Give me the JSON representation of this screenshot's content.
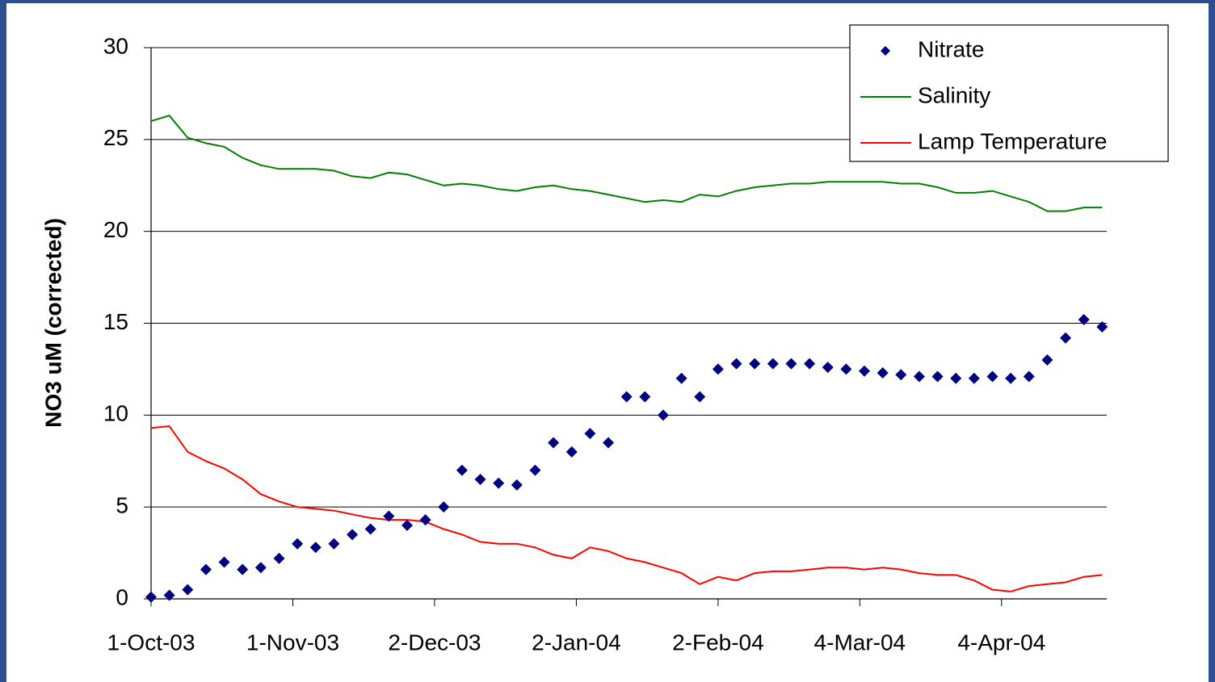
{
  "chart_data": {
    "type": "line",
    "y_label": "NO3 uM (corrected)",
    "x": [
      "2003-10-01",
      "2003-10-05",
      "2003-10-09",
      "2003-10-13",
      "2003-10-17",
      "2003-10-21",
      "2003-10-25",
      "2003-10-29",
      "2003-11-02",
      "2003-11-06",
      "2003-11-10",
      "2003-11-14",
      "2003-11-18",
      "2003-11-22",
      "2003-11-26",
      "2003-11-30",
      "2003-12-04",
      "2003-12-08",
      "2003-12-12",
      "2003-12-16",
      "2003-12-20",
      "2003-12-24",
      "2003-12-28",
      "2004-01-01",
      "2004-01-05",
      "2004-01-09",
      "2004-01-13",
      "2004-01-17",
      "2004-01-21",
      "2004-01-25",
      "2004-01-29",
      "2004-02-02",
      "2004-02-06",
      "2004-02-10",
      "2004-02-14",
      "2004-02-18",
      "2004-02-22",
      "2004-02-26",
      "2004-03-01",
      "2004-03-05",
      "2004-03-09",
      "2004-03-13",
      "2004-03-17",
      "2004-03-21",
      "2004-03-25",
      "2004-03-29",
      "2004-04-02",
      "2004-04-06",
      "2004-04-10",
      "2004-04-14",
      "2004-04-18",
      "2004-04-22",
      "2004-04-26"
    ],
    "series": [
      {
        "name": "Nitrate",
        "type": "scatter",
        "color": "#000080",
        "values": [
          0.1,
          0.2,
          0.5,
          1.6,
          2.0,
          1.6,
          1.7,
          2.2,
          3.0,
          2.8,
          3.0,
          3.5,
          3.8,
          4.5,
          4.0,
          4.3,
          5.0,
          7.0,
          6.5,
          6.3,
          6.2,
          7.0,
          8.5,
          8.0,
          9.0,
          8.5,
          11.0,
          11.0,
          10.0,
          12.0,
          11.0,
          12.5,
          12.8,
          12.8,
          12.8,
          12.8,
          12.8,
          12.6,
          12.5,
          12.4,
          12.3,
          12.2,
          12.1,
          12.1,
          12.0,
          12.0,
          12.1,
          12.0,
          12.1,
          13.0,
          14.2,
          15.2,
          14.8
        ]
      },
      {
        "name": "Salinity",
        "type": "line",
        "color": "#008000",
        "values": [
          26.0,
          26.3,
          25.1,
          24.8,
          24.6,
          24.0,
          23.6,
          23.4,
          23.4,
          23.4,
          23.3,
          23.0,
          22.9,
          23.2,
          23.1,
          22.8,
          22.5,
          22.6,
          22.5,
          22.3,
          22.2,
          22.4,
          22.5,
          22.3,
          22.2,
          22.0,
          21.8,
          21.6,
          21.7,
          21.6,
          22.0,
          21.9,
          22.2,
          22.4,
          22.5,
          22.6,
          22.6,
          22.7,
          22.7,
          22.7,
          22.7,
          22.6,
          22.6,
          22.4,
          22.1,
          22.1,
          22.2,
          21.9,
          21.6,
          21.1,
          21.1,
          21.3,
          21.3
        ]
      },
      {
        "name": "Lamp Temperature",
        "type": "line",
        "color": "#ff0000",
        "values": [
          9.3,
          9.4,
          8.0,
          7.5,
          7.1,
          6.5,
          5.7,
          5.3,
          5.0,
          4.9,
          4.8,
          4.6,
          4.4,
          4.3,
          4.3,
          4.2,
          3.8,
          3.5,
          3.1,
          3.0,
          3.0,
          2.8,
          2.4,
          2.2,
          2.8,
          2.6,
          2.2,
          2.0,
          1.7,
          1.4,
          0.8,
          1.2,
          1.0,
          1.4,
          1.5,
          1.5,
          1.6,
          1.7,
          1.7,
          1.6,
          1.7,
          1.6,
          1.4,
          1.3,
          1.3,
          1.0,
          0.5,
          0.4,
          0.7,
          0.8,
          0.9,
          1.2,
          1.3
        ]
      }
    ],
    "xlim": [
      "2003-10-01",
      "2004-04-27"
    ],
    "xticks": [
      {
        "value": "2003-10-01",
        "label": "1-Oct-03"
      },
      {
        "value": "2003-11-01",
        "label": "1-Nov-03"
      },
      {
        "value": "2003-12-02",
        "label": "2-Dec-03"
      },
      {
        "value": "2004-01-02",
        "label": "2-Jan-04"
      },
      {
        "value": "2004-02-02",
        "label": "2-Feb-04"
      },
      {
        "value": "2004-03-04",
        "label": "4-Mar-04"
      },
      {
        "value": "2004-04-04",
        "label": "4-Apr-04"
      }
    ],
    "ylim": [
      0,
      30
    ],
    "yticks": [
      0,
      5,
      10,
      15,
      20,
      25,
      30
    ],
    "grid": true,
    "legend": "top-right"
  }
}
